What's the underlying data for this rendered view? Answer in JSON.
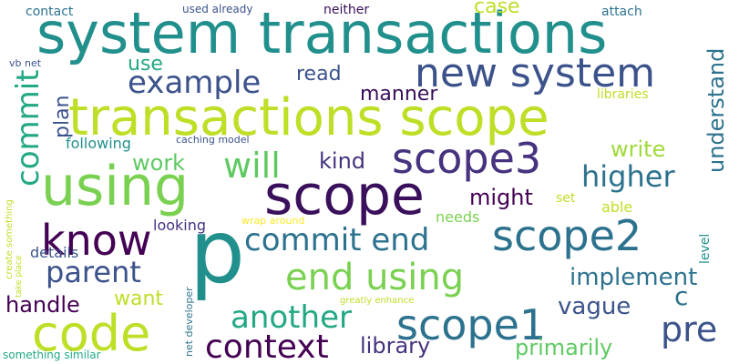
{
  "words": [
    {
      "text": "system transactions",
      "color": "#21908d"
    },
    {
      "text": "transactions scope",
      "color": "#bddf26"
    },
    {
      "text": "new system",
      "color": "#3b528b"
    },
    {
      "text": "using",
      "color": "#7ad151"
    },
    {
      "text": "scope",
      "color": "#3a0f5b"
    },
    {
      "text": "p",
      "color": "#21908d"
    },
    {
      "text": "know",
      "color": "#440154"
    },
    {
      "text": "code",
      "color": "#bddf26"
    },
    {
      "text": "scope3",
      "color": "#46327e"
    },
    {
      "text": "scope2",
      "color": "#2c728e"
    },
    {
      "text": "scope1",
      "color": "#2c728e"
    },
    {
      "text": "end using",
      "color": "#7ad151"
    },
    {
      "text": "commit end",
      "color": "#2c728e"
    },
    {
      "text": "context",
      "color": "#440154"
    },
    {
      "text": "another",
      "color": "#22a884"
    },
    {
      "text": "example",
      "color": "#3b528b"
    },
    {
      "text": "parent",
      "color": "#3b528b"
    },
    {
      "text": "higher",
      "color": "#2c728e"
    },
    {
      "text": "commit",
      "color": "#22a884"
    },
    {
      "text": "will",
      "color": "#5ec962"
    },
    {
      "text": "pre",
      "color": "#3b528b"
    },
    {
      "text": "implement",
      "color": "#2c728e"
    },
    {
      "text": "library",
      "color": "#46327e"
    },
    {
      "text": "primarily",
      "color": "#5ec962"
    },
    {
      "text": "handle",
      "color": "#440154"
    },
    {
      "text": "understand",
      "color": "#2c728e"
    },
    {
      "text": "vague",
      "color": "#3b528b"
    },
    {
      "text": "work",
      "color": "#5ec962"
    },
    {
      "text": "kind",
      "color": "#46327e"
    },
    {
      "text": "might",
      "color": "#440154"
    },
    {
      "text": "write",
      "color": "#a0da39"
    },
    {
      "text": "manner",
      "color": "#3a0f5b"
    },
    {
      "text": "want",
      "color": "#bddf26"
    },
    {
      "text": "read",
      "color": "#3b528b"
    },
    {
      "text": "plan",
      "color": "#3b528b"
    },
    {
      "text": "use",
      "color": "#22a884"
    },
    {
      "text": "case",
      "color": "#bddf26"
    },
    {
      "text": "c",
      "color": "#2c728e"
    },
    {
      "text": "following",
      "color": "#21908d"
    },
    {
      "text": "looking",
      "color": "#46327e"
    },
    {
      "text": "details",
      "color": "#3b528b"
    },
    {
      "text": "needs",
      "color": "#7ad151"
    },
    {
      "text": "able",
      "color": "#bddf26"
    },
    {
      "text": "set",
      "color": "#bddf26"
    },
    {
      "text": "libraries",
      "color": "#bddf26"
    },
    {
      "text": "level",
      "color": "#21908d"
    },
    {
      "text": "contact",
      "color": "#2c728e"
    },
    {
      "text": "neither",
      "color": "#3a0f5b"
    },
    {
      "text": "attach",
      "color": "#2c728e"
    },
    {
      "text": "used already",
      "color": "#3b528b"
    },
    {
      "text": "vb net",
      "color": "#3b528b"
    },
    {
      "text": "caching model",
      "color": "#3b528b"
    },
    {
      "text": "wrap around",
      "color": "#fde725"
    },
    {
      "text": "net developer",
      "color": "#2c728e"
    },
    {
      "text": "greatly enhance",
      "color": "#bddf26"
    },
    {
      "text": "create something",
      "color": "#bddf26"
    },
    {
      "text": "take place",
      "color": "#bddf26"
    },
    {
      "text": "something similar",
      "color": "#22a884"
    }
  ]
}
